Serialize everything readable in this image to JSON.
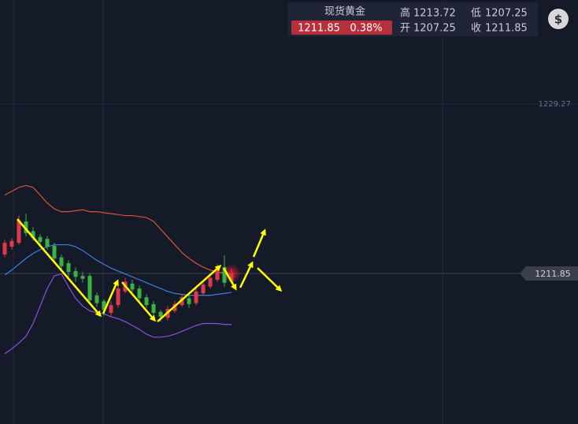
{
  "chart_data": {
    "type": "candlestick",
    "quote": {
      "name": "现货黄金",
      "price": 1211.85,
      "change": "0.38%",
      "high_label": "高",
      "high": 1213.72,
      "low_label": "低",
      "low": 1207.25,
      "open_label": "开",
      "open": 1207.25,
      "close_label": "收",
      "close": 1211.85
    },
    "currency_icon": "$",
    "ylim": [
      1196.37,
      1239.97
    ],
    "yticks": [
      1229.27
    ],
    "last_price": 1211.85,
    "up_color": "#e0394a",
    "down_color": "#3cb043",
    "candles": {
      "open": [
        1213.8,
        1214.6,
        1215.0,
        1217.2,
        1216.2,
        1215.6,
        1215.4,
        1214.7,
        1213.5,
        1212.9,
        1212.1,
        1211.6,
        1211.6,
        1209.6,
        1209.0,
        1207.8,
        1208.6,
        1210.0,
        1210.8,
        1210.3,
        1209.4,
        1208.7,
        1207.9,
        1207.3,
        1208.0,
        1208.6,
        1209.3,
        1208.8,
        1209.8,
        1210.5,
        1211.2,
        1212.5,
        1211.0
      ],
      "high": [
        1215.3,
        1215.5,
        1217.8,
        1218.0,
        1216.6,
        1215.9,
        1215.7,
        1215.0,
        1213.8,
        1213.2,
        1212.5,
        1212.0,
        1211.9,
        1209.9,
        1209.2,
        1209.0,
        1210.8,
        1211.4,
        1211.2,
        1210.6,
        1209.7,
        1209.0,
        1208.1,
        1208.5,
        1209.0,
        1209.7,
        1209.6,
        1210.4,
        1210.9,
        1211.6,
        1212.8,
        1213.7,
        1212.3
      ],
      "low": [
        1213.5,
        1214.3,
        1214.8,
        1215.7,
        1215.2,
        1214.8,
        1214.3,
        1213.0,
        1212.2,
        1211.5,
        1211.0,
        1210.9,
        1208.8,
        1208.4,
        1207.5,
        1207.4,
        1208.3,
        1209.8,
        1209.9,
        1209.0,
        1208.3,
        1207.5,
        1206.9,
        1207.0,
        1207.8,
        1208.4,
        1208.3,
        1208.6,
        1209.6,
        1210.3,
        1211.0,
        1210.5,
        1210.8
      ],
      "close": [
        1215.0,
        1215.2,
        1217.3,
        1216.0,
        1215.5,
        1215.1,
        1214.6,
        1213.4,
        1212.6,
        1212.0,
        1211.5,
        1211.3,
        1209.1,
        1208.8,
        1208.1,
        1208.6,
        1210.3,
        1211.0,
        1210.2,
        1209.3,
        1208.6,
        1207.8,
        1207.4,
        1208.2,
        1208.7,
        1209.4,
        1208.7,
        1210.0,
        1210.7,
        1211.4,
        1212.4,
        1210.9,
        1211.85
      ]
    },
    "bands": [
      {
        "color": "#d9503c",
        "values": [
          1219.9,
          1220.3,
          1220.7,
          1220.9,
          1220.7,
          1219.9,
          1219.1,
          1218.5,
          1218.2,
          1218.2,
          1218.3,
          1218.4,
          1218.2,
          1218.2,
          1218.1,
          1218.0,
          1217.9,
          1217.8,
          1217.8,
          1217.7,
          1217.6,
          1217.2,
          1216.4,
          1215.6,
          1214.8,
          1214.0,
          1213.4,
          1212.9,
          1212.5,
          1212.2,
          1212.0,
          1211.9,
          1211.8
        ]
      },
      {
        "color": "#3d7fe0",
        "values": [
          1211.7,
          1212.2,
          1212.8,
          1213.4,
          1213.9,
          1214.3,
          1214.6,
          1214.8,
          1214.8,
          1214.8,
          1214.6,
          1214.2,
          1213.7,
          1213.2,
          1212.8,
          1212.4,
          1212.1,
          1211.8,
          1211.5,
          1211.2,
          1210.9,
          1210.6,
          1210.3,
          1210.0,
          1209.8,
          1209.7,
          1209.6,
          1209.6,
          1209.6,
          1209.6,
          1209.7,
          1209.8,
          1209.9
        ]
      },
      {
        "color": "#8a4fe0",
        "values": [
          1203.6,
          1204.1,
          1204.7,
          1205.4,
          1206.7,
          1208.5,
          1210.3,
          1211.6,
          1211.8,
          1210.5,
          1209.3,
          1208.5,
          1208.0,
          1207.8,
          1207.7,
          1207.4,
          1207.2,
          1206.9,
          1206.5,
          1206.1,
          1205.6,
          1205.3,
          1205.3,
          1205.4,
          1205.6,
          1205.9,
          1206.2,
          1206.5,
          1206.7,
          1206.7,
          1206.7,
          1206.6,
          1206.6
        ]
      }
    ]
  }
}
